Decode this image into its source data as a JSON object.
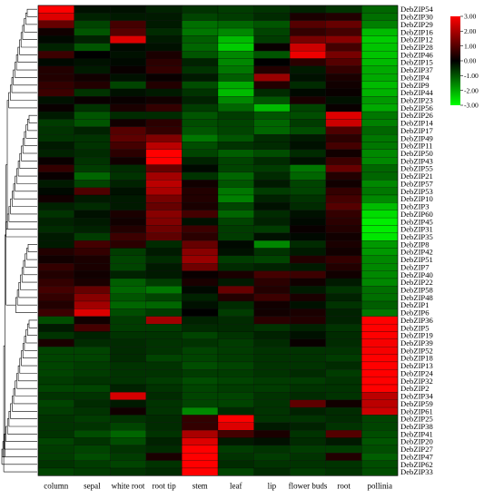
{
  "chart_data": {
    "type": "heatmap",
    "title": "",
    "xlabel": "",
    "ylabel": "",
    "columns": [
      "column",
      "sepal",
      "white root",
      "root tip",
      "stem",
      "leaf",
      "lip",
      "flower buds",
      "root",
      "pollinia"
    ],
    "rows": [
      "DebZIP54",
      "DebZIP30",
      "DebZIP29",
      "DebZIP16",
      "DebZIP12",
      "DebZIP28",
      "DebZIP46",
      "DebZIP15",
      "DebZIP37",
      "DebZIP4",
      "DebZIP9",
      "DebZIP44",
      "DebZIP23",
      "DebZIP56",
      "DebZIP26",
      "DebZIP14",
      "DebZIP17",
      "DebZIP49",
      "DebZIP11",
      "DebZIP50",
      "DebZIP43",
      "DebZIP55",
      "DebZIP21",
      "DebZIP57",
      "DebZIP53",
      "DebZIP10",
      "DebZIP3",
      "DebZIP60",
      "DebZIP45",
      "DebZIP31",
      "DebZIP35",
      "DebZIP8",
      "DebZIP42",
      "DebZIP51",
      "DebZIP7",
      "DebZIP40",
      "DebZIP22",
      "DebZIP58",
      "DebZIP48",
      "DebZIP1",
      "DebZIP6",
      "DebZIP36",
      "DebZIP5",
      "DebZIP19",
      "DebZIP39",
      "DebZIP52",
      "DebZIP18",
      "DebZIP13",
      "DebZIP24",
      "DebZIP32",
      "DebZIP2",
      "DebZIP34",
      "DebZIP59",
      "DebZIP61",
      "DebZIP25",
      "DebZIP38",
      "DebZIP41",
      "DebZIP20",
      "DebZIP27",
      "DebZIP47",
      "DebZIP62",
      "DebZIP33"
    ],
    "values": [
      [
        3.0,
        -0.2,
        -0.2,
        -0.4,
        -0.6,
        -0.7,
        -0.6,
        -0.4,
        -0.6,
        -1.2
      ],
      [
        2.6,
        -0.4,
        -0.3,
        -0.3,
        -0.8,
        -0.7,
        -0.5,
        0.3,
        0.4,
        -1.3
      ],
      [
        1.2,
        -0.8,
        0.8,
        -0.3,
        -1.3,
        -1.2,
        -1.0,
        1.0,
        1.2,
        -1.5
      ],
      [
        0.2,
        -1.0,
        1.0,
        -0.5,
        -1.4,
        -1.6,
        -0.8,
        0.6,
        0.8,
        -2.2
      ],
      [
        -0.1,
        -0.4,
        2.6,
        -0.3,
        -1.1,
        -2.2,
        -0.7,
        1.4,
        1.6,
        -2.4
      ],
      [
        -0.4,
        -1.0,
        -0.1,
        -0.2,
        -1.2,
        -2.4,
        0.1,
        2.4,
        0.8,
        -2.3
      ],
      [
        0.7,
        0.0,
        -0.2,
        0.3,
        -1.0,
        -1.6,
        -1.0,
        2.8,
        1.4,
        -2.3
      ],
      [
        -0.1,
        -0.2,
        -0.1,
        0.5,
        -0.4,
        -1.6,
        0.0,
        0.5,
        1.0,
        -2.2
      ],
      [
        0.4,
        -0.3,
        0.1,
        0.6,
        -0.6,
        -1.4,
        0.4,
        -0.3,
        0.6,
        -2.0
      ],
      [
        0.4,
        0.2,
        -0.2,
        0.1,
        -0.3,
        -1.1,
        1.8,
        -0.2,
        0.3,
        -2.0
      ],
      [
        0.6,
        0.4,
        -0.8,
        0.4,
        -0.9,
        -2.0,
        0.4,
        -0.5,
        0.2,
        -2.2
      ],
      [
        0.7,
        -0.6,
        -0.2,
        -0.3,
        -0.6,
        -2.2,
        -0.5,
        -0.1,
        0.1,
        -2.1
      ],
      [
        -0.2,
        0.1,
        0.1,
        0.2,
        -0.4,
        -1.6,
        -1.0,
        0.3,
        -0.2,
        -1.8
      ],
      [
        0.1,
        -0.6,
        0.3,
        0.6,
        -0.7,
        -1.2,
        -2.2,
        -0.8,
        0.1,
        -2.0
      ],
      [
        -0.3,
        -1.0,
        -0.5,
        -0.5,
        -1.0,
        -0.7,
        -1.0,
        -0.9,
        2.6,
        -1.4
      ],
      [
        -0.7,
        -1.0,
        0.2,
        0.5,
        -0.9,
        -0.8,
        -1.2,
        -0.7,
        2.4,
        -1.5
      ],
      [
        -0.6,
        -0.4,
        1.0,
        0.6,
        -1.0,
        -0.8,
        -1.2,
        -0.9,
        0.9,
        -1.2
      ],
      [
        -0.6,
        -0.6,
        1.1,
        1.5,
        -1.4,
        -1.0,
        -0.5,
        -0.3,
        0.5,
        -1.4
      ],
      [
        -0.3,
        -0.6,
        0.8,
        2.2,
        -0.9,
        -0.6,
        -0.5,
        -0.2,
        0.8,
        -1.4
      ],
      [
        -0.4,
        -0.5,
        0.5,
        3.0,
        -0.8,
        -1.1,
        -0.9,
        -0.5,
        0.2,
        -1.6
      ],
      [
        0.1,
        -0.6,
        0.2,
        3.0,
        -0.4,
        -0.8,
        -0.5,
        -0.2,
        0.7,
        -1.6
      ],
      [
        0.6,
        -0.7,
        -0.5,
        1.2,
        -0.1,
        -0.8,
        -0.7,
        -1.4,
        1.2,
        -1.2
      ],
      [
        0.1,
        -1.2,
        -0.6,
        1.9,
        -0.6,
        -1.2,
        -0.5,
        -1.2,
        0.4,
        -1.2
      ],
      [
        -0.3,
        -0.8,
        -0.4,
        2.2,
        0.2,
        -1.0,
        -0.3,
        -0.8,
        0.2,
        -1.6
      ],
      [
        -0.1,
        0.9,
        -0.2,
        2.0,
        0.4,
        -1.4,
        -0.7,
        -0.8,
        0.6,
        -1.4
      ],
      [
        0.2,
        -0.3,
        -0.3,
        1.4,
        0.4,
        -1.5,
        -0.4,
        -0.6,
        0.8,
        -1.6
      ],
      [
        -0.4,
        -0.5,
        -0.3,
        1.2,
        0.3,
        -0.8,
        -0.2,
        -0.5,
        1.0,
        -2.2
      ],
      [
        -0.6,
        -0.2,
        0.3,
        1.6,
        0.8,
        -1.2,
        -0.5,
        -0.2,
        0.6,
        -2.6
      ],
      [
        -0.4,
        -0.3,
        0.2,
        1.5,
        -0.2,
        -0.8,
        -0.4,
        -0.1,
        0.5,
        -2.8
      ],
      [
        -0.5,
        -0.4,
        0.4,
        1.3,
        0.7,
        -0.7,
        -0.7,
        0.1,
        0.4,
        -2.8
      ],
      [
        -0.3,
        -0.7,
        0.7,
        1.1,
        0.5,
        -0.7,
        -0.2,
        -0.1,
        0.2,
        -2.7
      ],
      [
        -0.3,
        0.8,
        0.5,
        -0.5,
        1.2,
        -0.1,
        -1.6,
        -0.5,
        0.3,
        -1.8
      ],
      [
        0.4,
        0.6,
        -0.7,
        -0.3,
        1.6,
        -0.2,
        -0.6,
        -0.3,
        0.2,
        -1.8
      ],
      [
        0.2,
        0.3,
        -0.8,
        -0.5,
        1.8,
        -0.7,
        -0.8,
        0.4,
        0.6,
        -1.6
      ],
      [
        0.6,
        0.3,
        -0.8,
        -0.3,
        1.3,
        -0.5,
        -0.4,
        -0.3,
        0.4,
        -1.6
      ],
      [
        0.4,
        0.2,
        -0.4,
        -0.3,
        0.1,
        0.3,
        0.8,
        0.7,
        0.2,
        -1.6
      ],
      [
        0.6,
        0.3,
        -1.1,
        -0.7,
        0.3,
        -0.3,
        0.5,
        0.2,
        -0.3,
        -1.6
      ],
      [
        0.8,
        1.2,
        -1.2,
        -1.4,
        -0.1,
        1.2,
        0.4,
        -0.3,
        -0.6,
        -1.3
      ],
      [
        0.6,
        1.6,
        -1.0,
        -0.8,
        -0.4,
        0.4,
        0.7,
        0.3,
        -0.4,
        -1.3
      ],
      [
        0.4,
        1.9,
        -1.2,
        -1.2,
        -0.2,
        -0.5,
        0.2,
        -0.2,
        -0.6,
        -1.1
      ],
      [
        0.7,
        2.6,
        -0.9,
        -0.7,
        0.0,
        -0.7,
        0.2,
        0.3,
        -0.4,
        -1.4
      ],
      [
        -0.9,
        0.2,
        -0.7,
        1.9,
        -0.4,
        -0.5,
        0.5,
        0.4,
        -0.4,
        3.0
      ],
      [
        -0.3,
        0.8,
        -0.7,
        -0.7,
        -0.5,
        -0.5,
        -0.6,
        -0.4,
        -0.6,
        3.0
      ],
      [
        -0.6,
        -0.4,
        -0.6,
        -0.6,
        -0.8,
        -0.6,
        -0.4,
        -0.2,
        -0.5,
        3.0
      ],
      [
        0.3,
        -0.5,
        -0.5,
        -0.6,
        -0.6,
        -0.7,
        -0.5,
        0.1,
        -0.5,
        2.9
      ],
      [
        -0.8,
        -0.8,
        -0.5,
        -0.6,
        -0.8,
        -0.7,
        -0.6,
        -0.6,
        -0.6,
        2.9
      ],
      [
        -0.8,
        -0.8,
        -0.5,
        -0.8,
        -0.8,
        -0.7,
        -0.6,
        -0.6,
        -0.7,
        3.0
      ],
      [
        -0.8,
        -0.7,
        -0.6,
        -0.6,
        -0.9,
        -0.8,
        -0.6,
        -0.6,
        -0.5,
        3.0
      ],
      [
        -0.8,
        -0.7,
        -0.6,
        -0.6,
        -0.7,
        -0.7,
        -0.6,
        -0.5,
        -0.7,
        3.0
      ],
      [
        -0.7,
        -0.6,
        -0.6,
        -0.7,
        -0.9,
        -0.8,
        -0.7,
        -0.7,
        -0.6,
        3.0
      ],
      [
        -0.8,
        -0.8,
        -0.4,
        -0.6,
        -0.8,
        -0.7,
        -0.7,
        -0.6,
        -0.6,
        3.0
      ],
      [
        -0.6,
        -0.6,
        2.5,
        -0.5,
        -0.8,
        -0.8,
        -0.6,
        -0.5,
        -0.6,
        2.2
      ],
      [
        -0.8,
        -0.5,
        -0.3,
        -0.6,
        -0.8,
        -0.8,
        -0.6,
        1.1,
        0.2,
        2.2
      ],
      [
        -0.7,
        -0.6,
        0.2,
        -0.6,
        -1.6,
        -0.5,
        -0.6,
        -0.4,
        -0.5,
        2.4
      ],
      [
        -0.6,
        -0.7,
        -0.6,
        -0.5,
        0.6,
        3.0,
        -0.6,
        -0.6,
        -0.5,
        -0.8
      ],
      [
        -0.6,
        -0.6,
        -0.8,
        -0.5,
        0.6,
        2.6,
        -0.3,
        -0.4,
        -0.6,
        -0.8
      ],
      [
        -0.6,
        -0.9,
        -1.2,
        -0.6,
        2.0,
        0.8,
        0.3,
        -0.6,
        1.0,
        -0.9
      ],
      [
        -0.8,
        -0.6,
        -0.9,
        -0.4,
        2.6,
        -0.3,
        -0.2,
        -0.5,
        -0.3,
        -1.0
      ],
      [
        -0.7,
        -0.8,
        -0.6,
        -0.5,
        3.0,
        -0.7,
        -0.6,
        -0.7,
        -0.7,
        -0.9
      ],
      [
        -0.7,
        -0.9,
        -0.7,
        0.3,
        3.0,
        -0.6,
        -0.7,
        -0.6,
        0.4,
        -1.1
      ],
      [
        -0.6,
        -0.7,
        -0.8,
        -0.6,
        3.0,
        -0.5,
        -0.6,
        -0.6,
        -0.6,
        -0.9
      ],
      [
        -0.8,
        -0.7,
        -0.6,
        -0.5,
        3.0,
        -0.8,
        -0.5,
        -0.7,
        -0.6,
        -0.9
      ]
    ],
    "legend": {
      "ticks": [
        "3.00",
        "2.00",
        "1.00",
        "0.00",
        "-1.00",
        "-2.00",
        "-3.00"
      ],
      "range": [
        -3,
        3
      ],
      "colors": {
        "high": "#ff0000",
        "mid": "#000000",
        "low": "#00ff00"
      },
      "placement": "top-right"
    },
    "dendrogram": "rows"
  }
}
